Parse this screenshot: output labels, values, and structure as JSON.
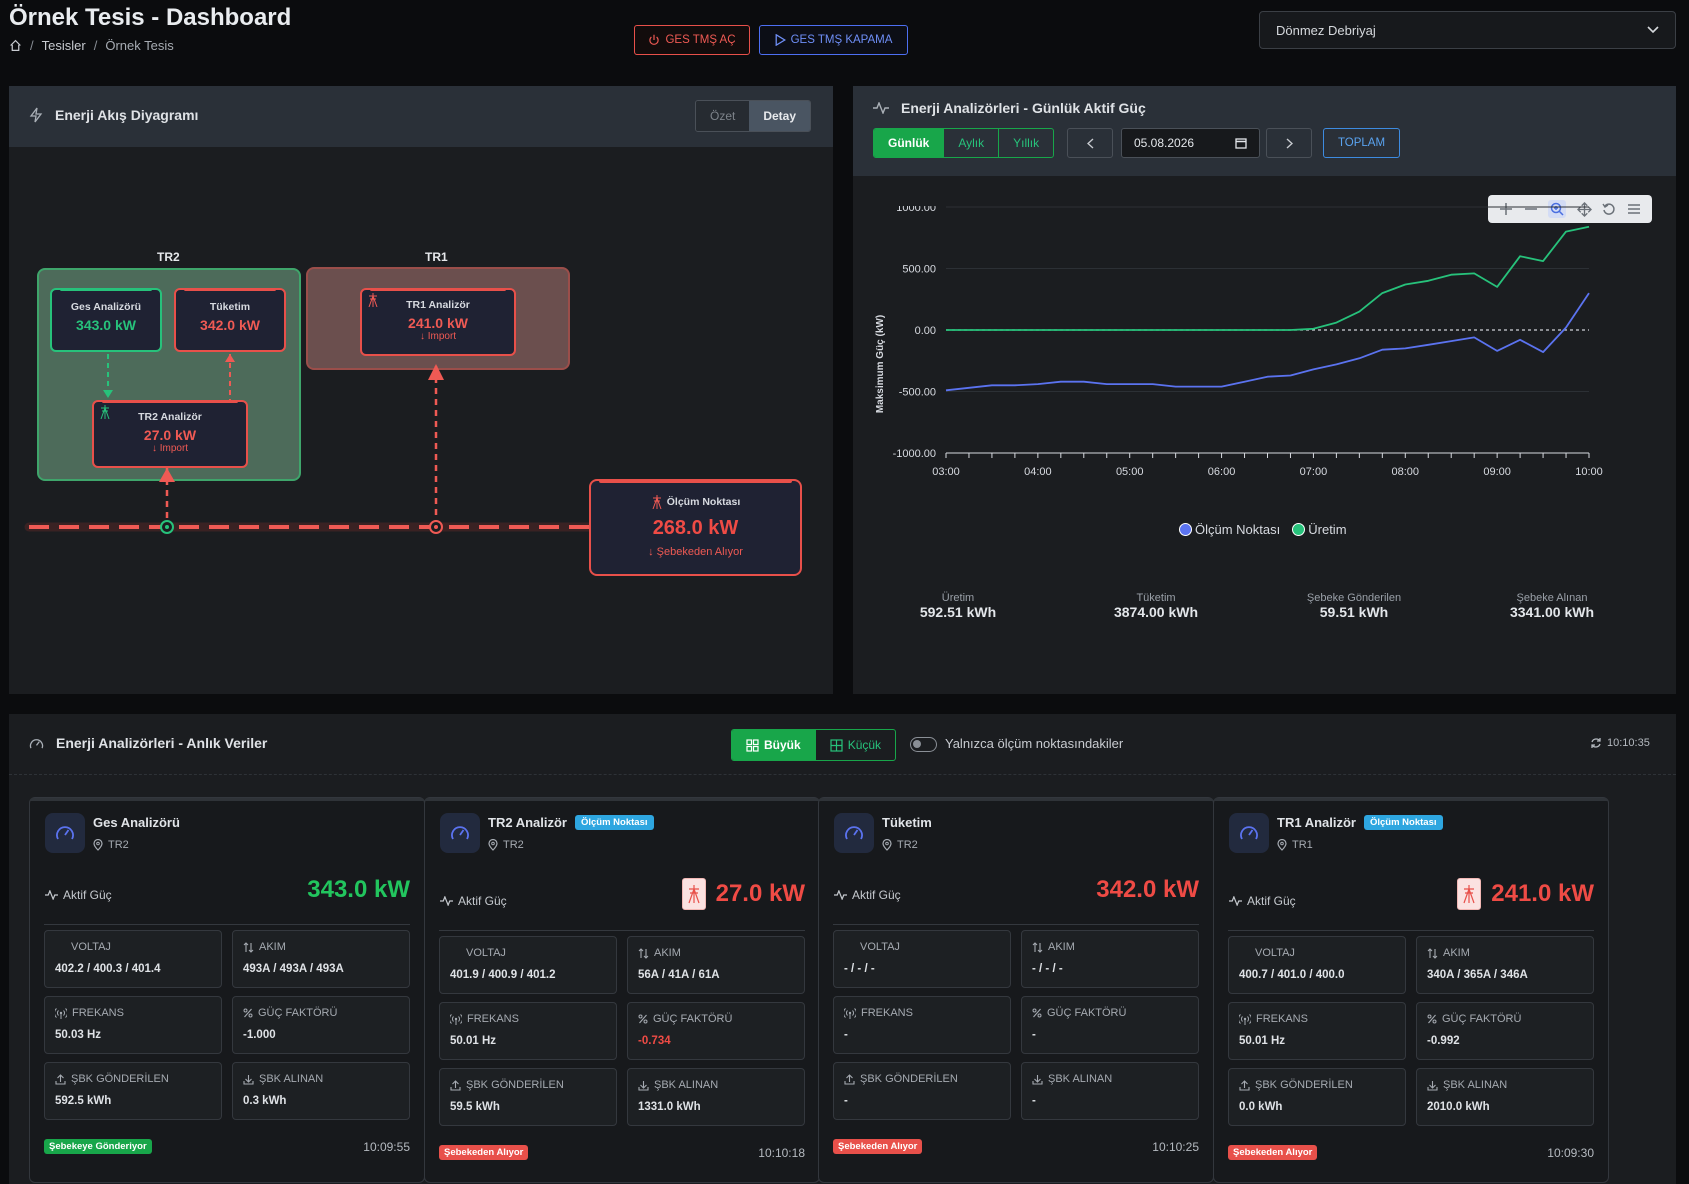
{
  "header": {
    "title": "Örnek Tesis - Dashboard",
    "breadcrumb": [
      "Tesisler",
      "Örnek Tesis"
    ],
    "btn_on": "GES TMŞ AÇ",
    "btn_off": "GES TMŞ KAPAMA",
    "select_value": "Dönmez Debriyaj"
  },
  "flow": {
    "title": "Enerji Akış Diyagramı",
    "tabs": [
      "Özet",
      "Detay"
    ],
    "active_tab": "Detay",
    "groups": {
      "tr2": "TR2",
      "tr1": "TR1"
    },
    "nodes": {
      "ges": {
        "label": "Ges Analizörü",
        "value": "343.0 kW"
      },
      "tuketim": {
        "label": "Tüketim",
        "value": "342.0 kW"
      },
      "tr2": {
        "label": "TR2 Analizör",
        "value": "27.0 kW",
        "sub": "↓ Import"
      },
      "tr1": {
        "label": "TR1 Analizör",
        "value": "241.0 kW",
        "sub": "↓ Import"
      },
      "olcum": {
        "label": "Ölçüm Noktası",
        "value": "268.0 kW",
        "sub": "↓ Şebekeden Alıyor"
      }
    }
  },
  "power": {
    "title": "Enerji Analizörleri - Günlük Aktif Güç",
    "period_tabs": [
      "Günlük",
      "Aylık",
      "Yıllık"
    ],
    "active_period": "Günlük",
    "date": "05.08.2026",
    "total_btn": "TOPLAM",
    "totals": [
      {
        "label": "Üretim",
        "value": "592.51 kWh"
      },
      {
        "label": "Tüketim",
        "value": "3874.00 kWh"
      },
      {
        "label": "Şebeke Gönderilen",
        "value": "59.51 kWh"
      },
      {
        "label": "Şebeke Alınan",
        "value": "3341.00 kWh"
      }
    ]
  },
  "chart_data": {
    "type": "line",
    "ylabel": "Maksimum Güç (kW)",
    "ylim": [
      -1000,
      1000
    ],
    "yticks": [
      "1000.00",
      "500.00",
      "0.00",
      "-500.00",
      "-1000.00"
    ],
    "xticks": [
      "03:00",
      "04:00",
      "05:00",
      "06:00",
      "07:00",
      "08:00",
      "09:00",
      "10:00"
    ],
    "x": [
      "03:00",
      "03:15",
      "03:30",
      "03:45",
      "04:00",
      "04:15",
      "04:30",
      "04:45",
      "05:00",
      "05:15",
      "05:30",
      "05:45",
      "06:00",
      "06:15",
      "06:30",
      "06:45",
      "07:00",
      "07:15",
      "07:30",
      "07:45",
      "08:00",
      "08:15",
      "08:30",
      "08:45",
      "09:00",
      "09:15",
      "09:30",
      "09:45",
      "10:00"
    ],
    "series": [
      {
        "name": "Ölçüm Noktası",
        "color": "#5b73f0",
        "values": [
          -490,
          -470,
          -450,
          -450,
          -440,
          -420,
          -420,
          -440,
          -440,
          -440,
          -460,
          -460,
          -460,
          -420,
          -380,
          -370,
          -320,
          -280,
          -230,
          -160,
          -150,
          -120,
          -90,
          -60,
          -170,
          -80,
          -180,
          20,
          300
        ]
      },
      {
        "name": "Üretim",
        "color": "#27c27b",
        "values": [
          0,
          0,
          0,
          0,
          0,
          0,
          0,
          0,
          0,
          0,
          0,
          0,
          0,
          0,
          0,
          0,
          10,
          60,
          150,
          300,
          370,
          400,
          450,
          460,
          350,
          600,
          560,
          800,
          840
        ]
      }
    ],
    "legend": "bottom"
  },
  "live": {
    "title": "Enerji Analizörleri - Anlık Veriler",
    "view_tabs": [
      "Büyük",
      "Küçük"
    ],
    "active_view": "Büyük",
    "toggle_label": "Yalnızca ölçüm noktasındakiler",
    "time": "10:10:35",
    "labels": {
      "aktif": "Aktif Güç",
      "voltaj": "VOLTAJ",
      "akim": "AKIM",
      "frekans": "FREKANS",
      "guc": "GÜÇ FAKTÖRÜ",
      "gonderilen": "ŞBK GÖNDERİLEN",
      "alinan": "ŞBK ALINAN"
    },
    "cards": [
      {
        "name": "Ges Analizörü",
        "loc": "TR2",
        "badge": "",
        "power": "343.0 kW",
        "power_color": "#22c55e",
        "voltaj": "402.2 / 400.3 / 401.4",
        "akim": "493A / 493A / 493A",
        "frekans": "50.03 Hz",
        "guc": "-1.000",
        "guc_color": "#dfe2e6",
        "gonderilen": "592.5 kWh",
        "alinan": "0.3 kWh",
        "status": "Şebekeye Gönderiyor",
        "status_kind": "green",
        "time": "10:09:55"
      },
      {
        "name": "TR2 Analizör",
        "loc": "TR2",
        "badge": "Ölçüm Noktası",
        "power": "27.0 kW",
        "power_color": "#ef4b45",
        "voltaj": "401.9 / 400.9 / 401.2",
        "akim": "56A / 41A / 61A",
        "frekans": "50.01 Hz",
        "guc": "-0.734",
        "guc_color": "#ef4b45",
        "gonderilen": "59.5 kWh",
        "alinan": "1331.0 kWh",
        "status": "Şebekeden Alıyor",
        "status_kind": "red",
        "time": "10:10:18"
      },
      {
        "name": "Tüketim",
        "loc": "TR2",
        "badge": "",
        "power": "342.0 kW",
        "power_color": "#ef4b45",
        "voltaj": "- / - / -",
        "akim": "- / - / -",
        "frekans": "-",
        "guc": "-",
        "guc_color": "#dfe2e6",
        "gonderilen": "-",
        "alinan": "-",
        "status": "Şebekeden Alıyor",
        "status_kind": "red",
        "time": "10:10:25"
      },
      {
        "name": "TR1 Analizör",
        "loc": "TR1",
        "badge": "Ölçüm Noktası",
        "power": "241.0 kW",
        "power_color": "#ef4b45",
        "voltaj": "400.7 / 401.0 / 400.0",
        "akim": "340A / 365A / 346A",
        "frekans": "50.01 Hz",
        "guc": "-0.992",
        "guc_color": "#dfe2e6",
        "gonderilen": "0.0 kWh",
        "alinan": "2010.0 kWh",
        "status": "Şebekeden Alıyor",
        "status_kind": "red",
        "time": "10:09:30"
      }
    ]
  }
}
